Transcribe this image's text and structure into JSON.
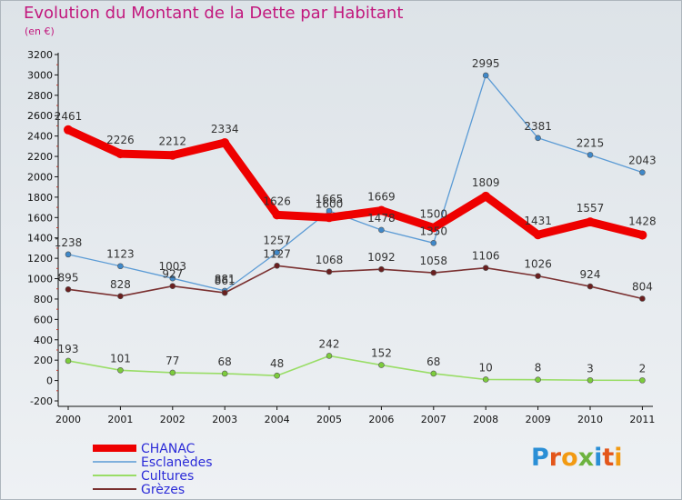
{
  "title": "Evolution du Montant de la Dette par Habitant",
  "unit": "(en €)",
  "logo": {
    "text": "Proxiti",
    "colors": [
      "#2a8fd6",
      "#e3561b",
      "#f29a12",
      "#6db33f",
      "#2a8fd6",
      "#e3561b",
      "#f29a12"
    ]
  },
  "colors": {
    "title": "#c2187d",
    "legend_text": "#2b2bd8",
    "axis": "#111111",
    "background_top": "#dde3e8"
  },
  "chart_data": {
    "type": "line",
    "x": [
      "2000",
      "2001",
      "2002",
      "2003",
      "2004",
      "2005",
      "2006",
      "2007",
      "2008",
      "2009",
      "2010",
      "2011"
    ],
    "ylim": [
      -200,
      3200
    ],
    "yticks": [
      -200,
      0,
      200,
      400,
      600,
      800,
      1000,
      1200,
      1400,
      1600,
      1800,
      2000,
      2200,
      2400,
      2600,
      2800,
      3000,
      3200
    ],
    "grid": false,
    "legend_position": "bottom-left",
    "series": [
      {
        "name": "CHANAC",
        "color": "#ee0000",
        "values": [
          2461,
          2226,
          2212,
          2334,
          1626,
          1600,
          1669,
          1500,
          1809,
          1431,
          1557,
          1428
        ],
        "labels": [
          "2461",
          "2226",
          "2212",
          "2334",
          "1626",
          "1600",
          "1669",
          "1500",
          "1809",
          "1431",
          "1557",
          "1428"
        ]
      },
      {
        "name": "Esclanèdes",
        "color": "#5b9bd5",
        "values": [
          1238,
          1123,
          1003,
          881,
          1257,
          1665,
          1478,
          1350,
          2995,
          2381,
          2215,
          2043
        ],
        "labels": [
          "1238",
          "1123",
          "1003",
          "881",
          "1257",
          "1665",
          "1478",
          "1350",
          "2995",
          "2381",
          "2215",
          "2043"
        ]
      },
      {
        "name": "Cultures",
        "color": "#99dd66",
        "values": [
          193,
          101,
          77,
          68,
          48,
          242,
          152,
          68,
          10,
          8,
          3,
          2
        ],
        "labels": [
          "193",
          "101",
          "77",
          "68",
          "48",
          "242",
          "152",
          "68",
          "10",
          "8",
          "3",
          "2"
        ]
      },
      {
        "name": "Grèzes",
        "color": "#7a3030",
        "values": [
          895,
          828,
          927,
          861,
          1127,
          1068,
          1092,
          1058,
          1106,
          1026,
          924,
          804
        ],
        "labels": [
          "895",
          "828",
          "927",
          "861",
          "1127",
          "1068",
          "1092",
          "1058",
          "1106",
          "1026",
          "924",
          "804"
        ]
      }
    ]
  }
}
